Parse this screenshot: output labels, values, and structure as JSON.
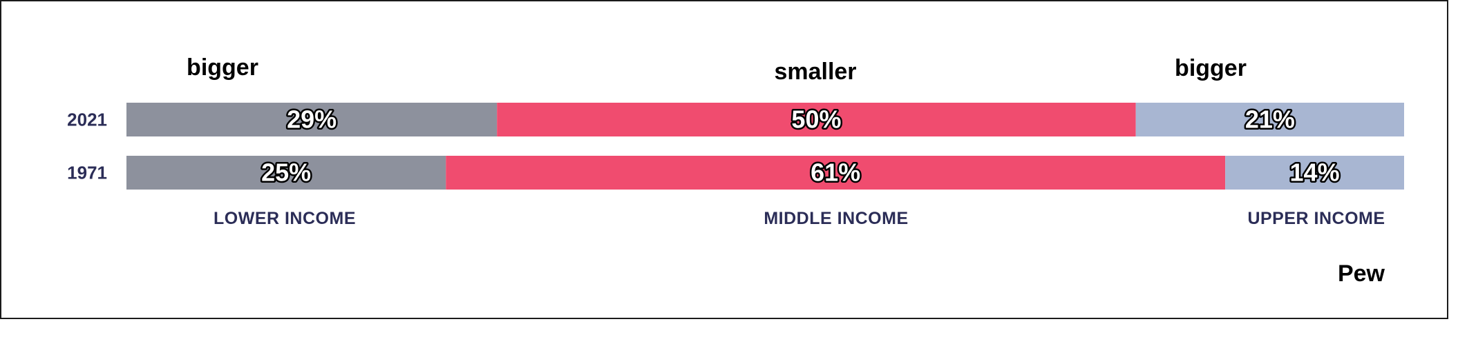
{
  "chart_data": {
    "type": "bar",
    "orientation": "horizontal-stacked",
    "title": "",
    "xlabel": "",
    "ylabel": "",
    "xlim": [
      0,
      100
    ],
    "grid": false,
    "legend": "none",
    "categories": [
      "2021",
      "1971"
    ],
    "series": [
      {
        "name": "LOWER INCOME",
        "color": "#8d919d",
        "values": [
          29,
          25
        ]
      },
      {
        "name": "MIDDLE INCOME",
        "color": "#f04c6f",
        "values": [
          50,
          61
        ]
      },
      {
        "name": "UPPER INCOME",
        "color": "#a8b6d2",
        "values": [
          21,
          14
        ]
      }
    ],
    "value_labels": [
      [
        "29%",
        "50%",
        "21%"
      ],
      [
        "25%",
        "61%",
        "14%"
      ]
    ],
    "annotations": [
      "bigger",
      "smaller",
      "bigger"
    ],
    "source": "Pew"
  }
}
